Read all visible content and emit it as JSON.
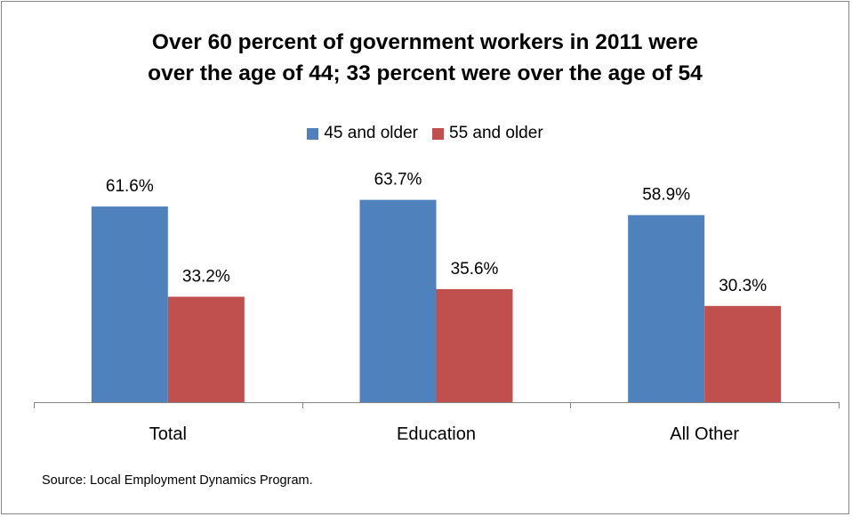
{
  "chart_data": {
    "type": "bar",
    "title": "Over 60 percent of government workers in 2011 were over the age of 44; 33 percent were over the age of 54",
    "title_lines": [
      "Over 60 percent of government workers in 2011 were",
      "over the age of 44; 33 percent were over the age of 54"
    ],
    "categories": [
      "Total",
      "Education",
      "All Other"
    ],
    "series": [
      {
        "name": "45 and older",
        "color": "#4F81BD",
        "values": [
          61.6,
          63.7,
          58.9
        ],
        "labels": [
          "61.6%",
          "63.7%",
          "58.9%"
        ]
      },
      {
        "name": "55 and older",
        "color": "#C0504D",
        "values": [
          33.2,
          35.6,
          30.3
        ],
        "labels": [
          "33.2%",
          "35.6%",
          "30.3%"
        ]
      }
    ],
    "xlabel": "",
    "ylabel": "",
    "ylim": [
      0,
      100
    ],
    "grid": false,
    "legend_position": "top"
  },
  "source": "Source: Local Employment Dynamics Program."
}
